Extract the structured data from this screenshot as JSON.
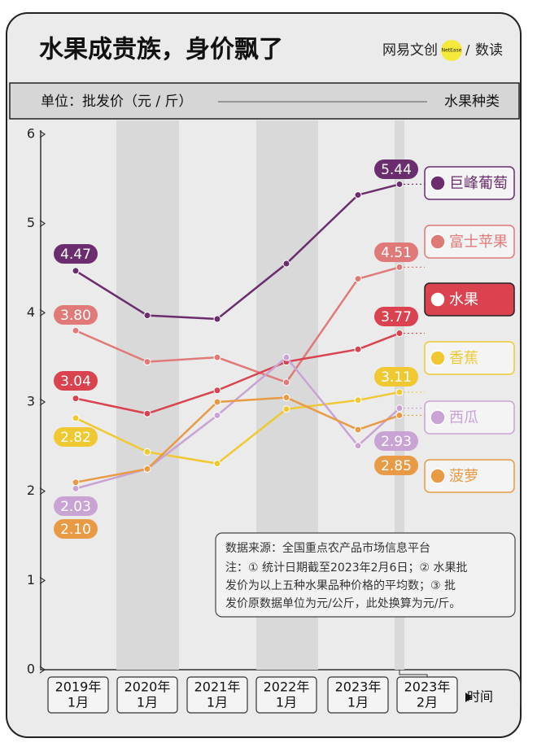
{
  "header": {
    "title": "水果成贵族，身价飘了",
    "logo": "网易文创",
    "logo_badge": "NetEase",
    "logo_sub": "数读",
    "unit": "单位：批发价（元 / 斤）",
    "legend_title": "水果种类"
  },
  "chart_data": {
    "type": "line",
    "categories": [
      [
        "2019年",
        "1月"
      ],
      [
        "2020年",
        "1月"
      ],
      [
        "2021年",
        "1月"
      ],
      [
        "2022年",
        "1月"
      ],
      [
        "2023年",
        "1月"
      ],
      [
        "2023年",
        "2月"
      ]
    ],
    "x_label": "时间",
    "ylim": [
      0,
      6
    ],
    "yticks": [
      0,
      1,
      2,
      3,
      4,
      5,
      6
    ],
    "series": [
      {
        "name": "巨峰葡萄",
        "color": "#6b2d6e",
        "values": [
          4.47,
          3.97,
          3.93,
          4.55,
          5.32,
          5.44
        ],
        "value_labels": [
          "4.47",
          null,
          null,
          null,
          null,
          "5.44"
        ]
      },
      {
        "name": "富士苹果",
        "color": "#e07a78",
        "values": [
          3.8,
          3.45,
          3.5,
          3.22,
          4.38,
          4.51
        ],
        "value_labels": [
          "3.80",
          null,
          null,
          null,
          null,
          "4.51"
        ]
      },
      {
        "name": "水果",
        "color": "#d9424e",
        "values": [
          3.04,
          2.87,
          3.13,
          3.45,
          3.59,
          3.77
        ],
        "value_labels": [
          "3.04",
          null,
          null,
          null,
          null,
          "3.77"
        ]
      },
      {
        "name": "香蕉",
        "color": "#f0c832",
        "values": [
          2.82,
          2.44,
          2.31,
          2.92,
          3.02,
          3.11
        ],
        "value_labels": [
          "2.82",
          null,
          null,
          null,
          null,
          "3.11"
        ]
      },
      {
        "name": "西瓜",
        "color": "#c9a3d4",
        "values": [
          2.03,
          2.25,
          2.85,
          3.5,
          2.51,
          2.93
        ],
        "value_labels": [
          "2.03",
          null,
          null,
          null,
          null,
          "2.93"
        ]
      },
      {
        "name": "菠萝",
        "color": "#e89a45",
        "values": [
          2.1,
          2.25,
          3.0,
          3.05,
          2.69,
          2.85
        ],
        "value_labels": [
          "2.10",
          null,
          null,
          null,
          null,
          "2.85"
        ]
      }
    ]
  },
  "notes": {
    "source": "数据来源：全国重点农产品市场信息平台",
    "lines": [
      "注：① 统计日期截至2023年2月6日；② 水果批",
      "发价为以上五种水果品种价格的平均数；③ 批",
      "发价原数据单位为元/公斤，此处换算为元/斤。"
    ]
  }
}
